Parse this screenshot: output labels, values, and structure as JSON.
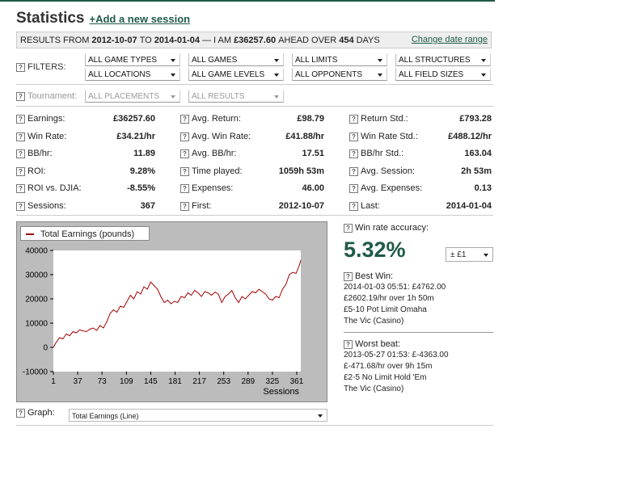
{
  "header": {
    "title": "Statistics",
    "add_session": "+Add a new session"
  },
  "results": {
    "prefix": "RESULTS FROM",
    "from": "2012-10-07",
    "to_word": "TO",
    "to": "2014-01-04",
    "mid": "— I AM",
    "amount": "£36257.60",
    "ahead": "AHEAD OVER",
    "days": "454",
    "days_word": "DAYS",
    "change_link": "Change date range"
  },
  "filters": {
    "label": "FILTERS:",
    "row1": [
      "ALL GAME TYPES",
      "ALL GAMES",
      "ALL LIMITS",
      "ALL STRUCTURES"
    ],
    "row2": [
      "ALL LOCATIONS",
      "ALL GAME LEVELS",
      "ALL OPPONENTS",
      "ALL FIELD SIZES"
    ],
    "tournament_label": "Tournament:",
    "row3": [
      "ALL PLACEMENTS",
      "ALL RESULTS"
    ]
  },
  "stats": [
    [
      {
        "label": "Earnings:",
        "value": "£36257.60"
      },
      {
        "label": "Avg. Return:",
        "value": "£98.79"
      },
      {
        "label": "Return Std.:",
        "value": "£793.28"
      }
    ],
    [
      {
        "label": "Win Rate:",
        "value": "£34.21/hr"
      },
      {
        "label": "Avg. Win Rate:",
        "value": "£41.88/hr"
      },
      {
        "label": "Win Rate Std.:",
        "value": "£488.12/hr"
      }
    ],
    [
      {
        "label": "BB/hr:",
        "value": "11.89"
      },
      {
        "label": "Avg. BB/hr:",
        "value": "17.51"
      },
      {
        "label": "BB/hr Std.:",
        "value": "163.04"
      }
    ],
    [
      {
        "label": "ROI:",
        "value": "9.28%"
      },
      {
        "label": "Time played:",
        "value": "1059h 53m"
      },
      {
        "label": "Avg. Session:",
        "value": "2h 53m"
      }
    ],
    [
      {
        "label": "ROI vs. DJIA:",
        "value": "-8.55%"
      },
      {
        "label": "Expenses:",
        "value": "46.00"
      },
      {
        "label": "Avg. Expenses:",
        "value": "0.13"
      }
    ],
    [
      {
        "label": "Sessions:",
        "value": "367"
      },
      {
        "label": "First:",
        "value": "2012-10-07"
      },
      {
        "label": "Last:",
        "value": "2014-01-04"
      }
    ]
  ],
  "win_rate": {
    "label": "Win rate accuracy:",
    "value": "5.32%",
    "selector": "± £1"
  },
  "best_win": {
    "label": "Best Win:",
    "lines": [
      "2014-01-03 05:51: £4762.00",
      "£2602.19/hr over 1h 50m",
      "£5-10 Pot Limit Omaha",
      "The Vic (Casino)"
    ]
  },
  "worst_beat": {
    "label": "Worst beat:",
    "lines": [
      "2013-05-27 01:53: £-4363.00",
      "£-471.68/hr over 9h 15m",
      "£2-5 No Limit Hold 'Em",
      "The Vic (Casino)"
    ]
  },
  "graph": {
    "label": "Graph:",
    "selected": "Total Earnings (Line)"
  },
  "chart_data": {
    "type": "line",
    "series": [
      {
        "name": "Total Earnings (pounds)",
        "color": "#a30000"
      }
    ],
    "xlabel": "Sessions",
    "ylabel": "",
    "xlim": [
      1,
      367
    ],
    "ylim": [
      -10000,
      40000
    ],
    "xticks": [
      1,
      37,
      73,
      109,
      145,
      181,
      217,
      253,
      289,
      325,
      361
    ],
    "yticks": [
      -10000,
      0,
      10000,
      20000,
      30000,
      40000
    ],
    "x": [
      1,
      5,
      10,
      15,
      20,
      25,
      30,
      35,
      40,
      45,
      50,
      55,
      60,
      65,
      70,
      75,
      80,
      85,
      90,
      95,
      100,
      105,
      110,
      115,
      120,
      125,
      130,
      135,
      140,
      145,
      150,
      155,
      160,
      165,
      170,
      175,
      180,
      185,
      190,
      195,
      200,
      205,
      210,
      215,
      220,
      225,
      230,
      235,
      240,
      245,
      250,
      255,
      260,
      265,
      270,
      275,
      280,
      285,
      290,
      295,
      300,
      305,
      310,
      315,
      320,
      325,
      330,
      335,
      340,
      345,
      350,
      355,
      360,
      365,
      367
    ],
    "y": [
      0,
      2000,
      4000,
      3500,
      5500,
      4800,
      6500,
      6000,
      7200,
      6800,
      6500,
      7500,
      8000,
      7000,
      9000,
      8000,
      10500,
      14000,
      15500,
      14500,
      17000,
      16500,
      19000,
      21500,
      20000,
      23000,
      22000,
      25000,
      24000,
      27000,
      25500,
      24000,
      21000,
      18500,
      19500,
      18000,
      19000,
      18500,
      21000,
      20500,
      22500,
      21500,
      23500,
      22500,
      21000,
      23000,
      22500,
      21500,
      22800,
      22000,
      18500,
      21000,
      22000,
      23500,
      20500,
      18500,
      21000,
      20000,
      21500,
      23000,
      22500,
      24000,
      23000,
      22000,
      20000,
      19500,
      21000,
      20500,
      24000,
      26000,
      30000,
      31000,
      30500,
      34000,
      36000
    ]
  }
}
